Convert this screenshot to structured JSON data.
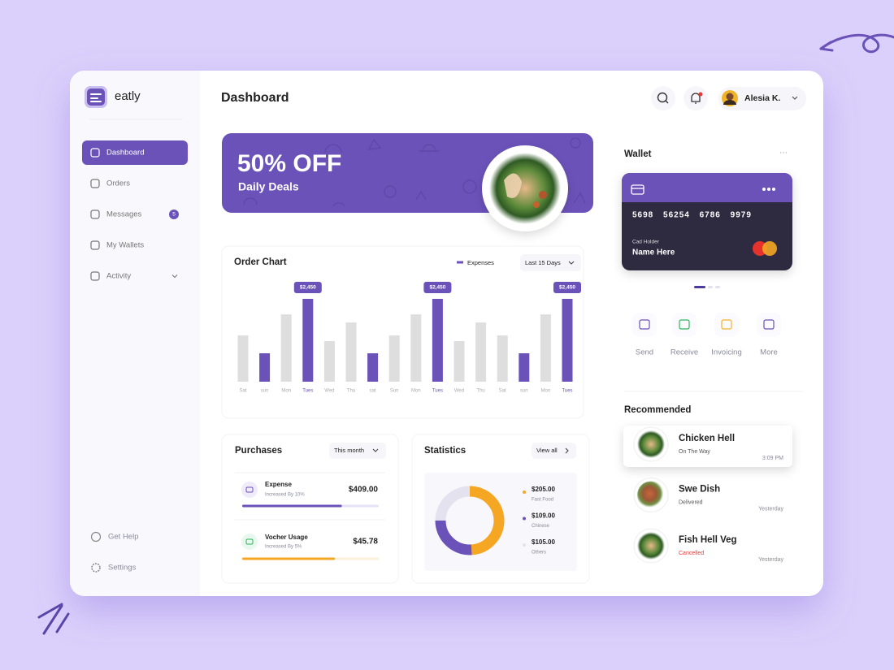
{
  "sidebar": {
    "logo": "eatly",
    "menu": [
      {
        "label": "Dashboard",
        "active": true
      },
      {
        "label": "Orders"
      },
      {
        "label": "Messages",
        "badge": 5
      },
      {
        "label": "My Wallets"
      },
      {
        "label": "Activity",
        "expandable": true
      }
    ],
    "footer": [
      "Get Help",
      "Settings"
    ]
  },
  "header": {
    "title": "Dashboard",
    "user": "Alesia K."
  },
  "banner": {
    "headline": "50% OFF",
    "subtitle": "Daily Deals"
  },
  "order_chart": {
    "title": "Order Chart",
    "legend": "Expenses",
    "filter": "Last 15 Days",
    "chart": {
      "type": "bar",
      "categories": [
        "Sat",
        "sun",
        "Mon",
        "Tues",
        "Wed",
        "Thu",
        "sat",
        "Sun",
        "Mon",
        "Tues",
        "Wed",
        "Thu",
        "Sat",
        "sun",
        "Mon",
        "Tues"
      ],
      "values": [
        1370,
        840,
        1990,
        2450,
        1200,
        1750,
        840,
        1370,
        1990,
        2450,
        1200,
        1750,
        1370,
        840,
        1990,
        2450
      ],
      "value_labels": [
        null,
        null,
        null,
        "$2,450",
        null,
        null,
        null,
        null,
        null,
        "$2,450",
        null,
        null,
        null,
        null,
        null,
        "$2,450"
      ],
      "colors": [
        "#dedede",
        "#6b52b9",
        "#dedede",
        "#6b52b9",
        "#dedede",
        "#dedede",
        "#6b52b9",
        "#dedede",
        "#dedede",
        "#6b52b9",
        "#dedede",
        "#dedede",
        "#dedede",
        "#6b52b9",
        "#dedede",
        "#6b52b9"
      ]
    }
  },
  "purchases": {
    "title": "Purchases",
    "filter": "This month",
    "items": [
      {
        "name": "Expense",
        "note": "Increased By 10%",
        "amount": "$409.00",
        "progress": 73,
        "color": "#6b52b9",
        "track": "#e6e2f5"
      },
      {
        "name": "Vocher Usage",
        "note": "Increased By 5%",
        "amount": "$45.78",
        "progress": 68,
        "color": "#f5a623",
        "track": "#fdf0d9"
      }
    ]
  },
  "statistics": {
    "title": "Statistics",
    "link": "View all",
    "chart": {
      "type": "donut",
      "categories": [
        "Fast Food",
        "Chinese",
        "Others"
      ],
      "values": [
        205,
        109,
        105
      ],
      "value_labels": [
        "$205.00",
        "$109.00",
        "$105.00"
      ],
      "colors": [
        "#f5a623",
        "#6b52b9",
        "#e4e2ef"
      ]
    }
  },
  "wallet": {
    "title": "Wallet",
    "card": {
      "number": "5698 56254 6786 9979",
      "holder_label": "Cad Holder",
      "holder": "Name Here"
    },
    "actions": [
      "Send",
      "Receive",
      "Invoicing",
      "More"
    ]
  },
  "recommended": {
    "title": "Recommended",
    "items": [
      {
        "name": "Chicken Hell",
        "status": "On The Way",
        "time": "3:09 PM"
      },
      {
        "name": "Swe Dish",
        "status": "Delivered",
        "time": "Yesterday"
      },
      {
        "name": "Fish Hell Veg",
        "status": "Cancelled",
        "time": "Yesterday",
        "status_color": "#e53935"
      }
    ]
  }
}
